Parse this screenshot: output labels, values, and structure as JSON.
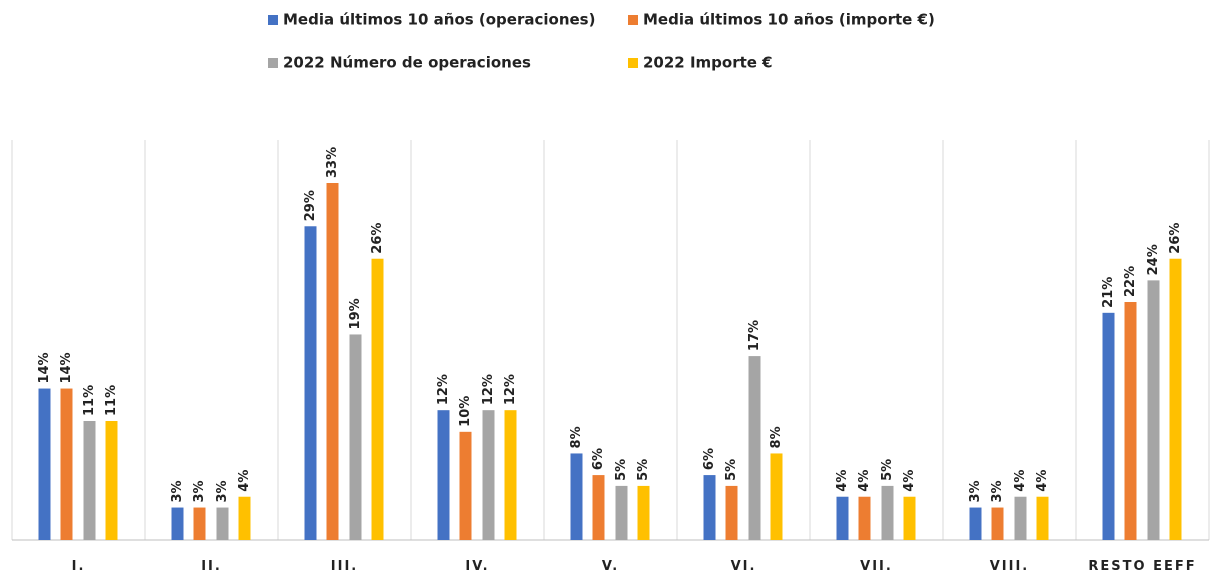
{
  "chart_data": {
    "type": "bar",
    "categories": [
      "I.",
      "II.",
      "III.",
      "IV.",
      "V.",
      "VI.",
      "VII.",
      "VIII.",
      "RESTO EEFF"
    ],
    "series": [
      {
        "name": "Media últimos 10 años (operaciones)",
        "color": "#4472c4",
        "values": [
          14,
          3,
          29,
          12,
          8,
          6,
          4,
          3,
          21
        ],
        "value_labels": [
          "14%",
          "3%",
          "29%",
          "12%",
          "8%",
          "6%",
          "4%",
          "3%",
          "21%"
        ]
      },
      {
        "name": "Media últimos 10 años  (importe €)",
        "color": "#ed7d31",
        "values": [
          14,
          3,
          33,
          10,
          6,
          5,
          4,
          3,
          22
        ],
        "value_labels": [
          "14%",
          "3%",
          "33%",
          "10%",
          "6%",
          "5%",
          "4%",
          "3%",
          "22%"
        ]
      },
      {
        "name": "2022 Número de operaciones",
        "color": "#a5a5a5",
        "values": [
          11,
          3,
          19,
          12,
          5,
          17,
          5,
          4,
          24
        ],
        "value_labels": [
          "11%",
          "3%",
          "19%",
          "12%",
          "5%",
          "17%",
          "5%",
          "4%",
          "24%"
        ]
      },
      {
        "name": "2022 Importe €",
        "color": "#ffc000",
        "values": [
          11,
          4,
          26,
          12,
          5,
          8,
          4,
          4,
          26
        ],
        "value_labels": [
          "11%",
          "4%",
          "26%",
          "12%",
          "5%",
          "8%",
          "4%",
          "4%",
          "26%"
        ]
      }
    ]
  }
}
